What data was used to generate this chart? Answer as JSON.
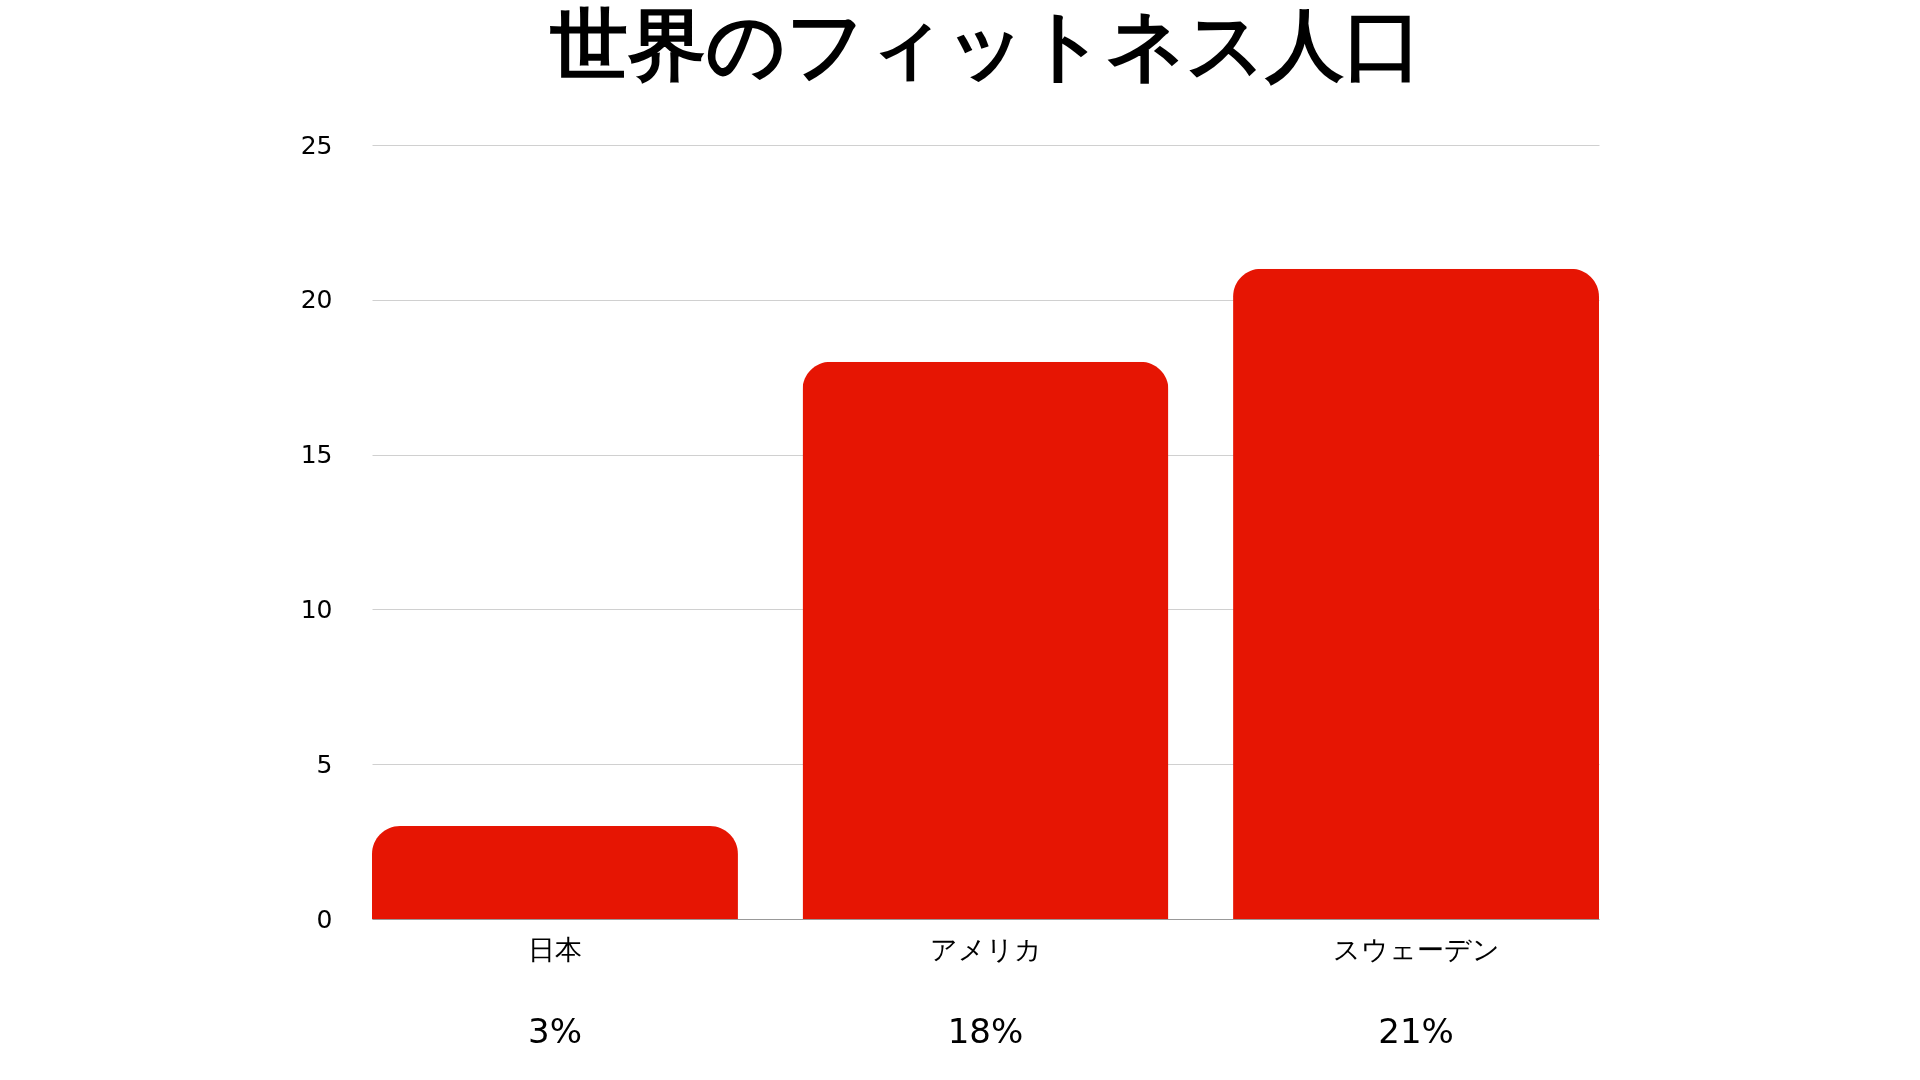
{
  "chart_data": {
    "type": "bar",
    "title": "世界のフィットネス人口",
    "categories": [
      "日本",
      "アメリカ",
      "スウェーデン"
    ],
    "values": [
      3,
      18,
      21
    ],
    "value_labels": [
      "3%",
      "18%",
      "21%"
    ],
    "color": "#e61503",
    "ylim": [
      0,
      25
    ],
    "yticks": [
      0,
      5,
      10,
      15,
      20,
      25
    ],
    "grid": "y"
  }
}
